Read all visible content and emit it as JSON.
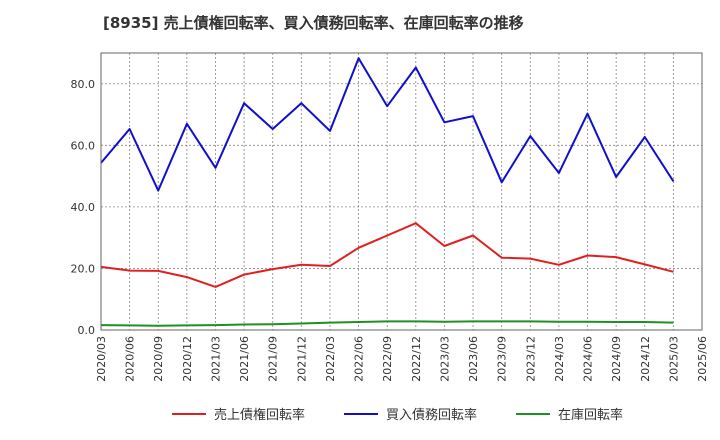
{
  "chart_data": {
    "type": "line",
    "title": "[8935]  売上債権回転率、買入債務回転率、在庫回転率の推移",
    "xlabel": "",
    "ylabel": "",
    "ylim": [
      0,
      90
    ],
    "yticks": [
      0,
      20,
      40,
      60,
      80
    ],
    "ytick_labels": [
      "0.0",
      "20.0",
      "40.0",
      "60.0",
      "80.0"
    ],
    "categories": [
      "2020/03",
      "2020/06",
      "2020/09",
      "2020/12",
      "2021/03",
      "2021/06",
      "2021/09",
      "2021/12",
      "2022/03",
      "2022/06",
      "2022/09",
      "2022/12",
      "2023/03",
      "2023/06",
      "2023/09",
      "2023/12",
      "2024/03",
      "2024/06",
      "2024/09",
      "2024/12",
      "2025/03",
      "2025/06"
    ],
    "grid": true,
    "legend_position": "bottom",
    "series": [
      {
        "name": "売上債権回転率",
        "color": "#e02020",
        "values": [
          20.5,
          19.3,
          19.2,
          17.2,
          14.0,
          18.0,
          19.8,
          21.2,
          20.8,
          26.7,
          30.7,
          34.7,
          27.3,
          30.7,
          23.5,
          23.2,
          21.2,
          24.2,
          23.7,
          21.3,
          18.9,
          null
        ]
      },
      {
        "name": "買入債務回転率",
        "color": "#1010cc",
        "values": [
          54.3,
          65.3,
          45.3,
          67.0,
          52.7,
          73.7,
          65.3,
          73.7,
          64.7,
          88.3,
          72.7,
          85.3,
          67.5,
          69.5,
          48.0,
          63.0,
          51.0,
          70.3,
          49.7,
          62.7,
          48.3,
          null
        ]
      },
      {
        "name": "在庫回転率",
        "color": "#209020",
        "values": [
          1.6,
          1.5,
          1.4,
          1.5,
          1.6,
          1.8,
          1.9,
          2.1,
          2.4,
          2.6,
          2.8,
          2.8,
          2.7,
          2.8,
          2.8,
          2.8,
          2.7,
          2.7,
          2.6,
          2.6,
          2.4,
          null
        ]
      }
    ]
  }
}
